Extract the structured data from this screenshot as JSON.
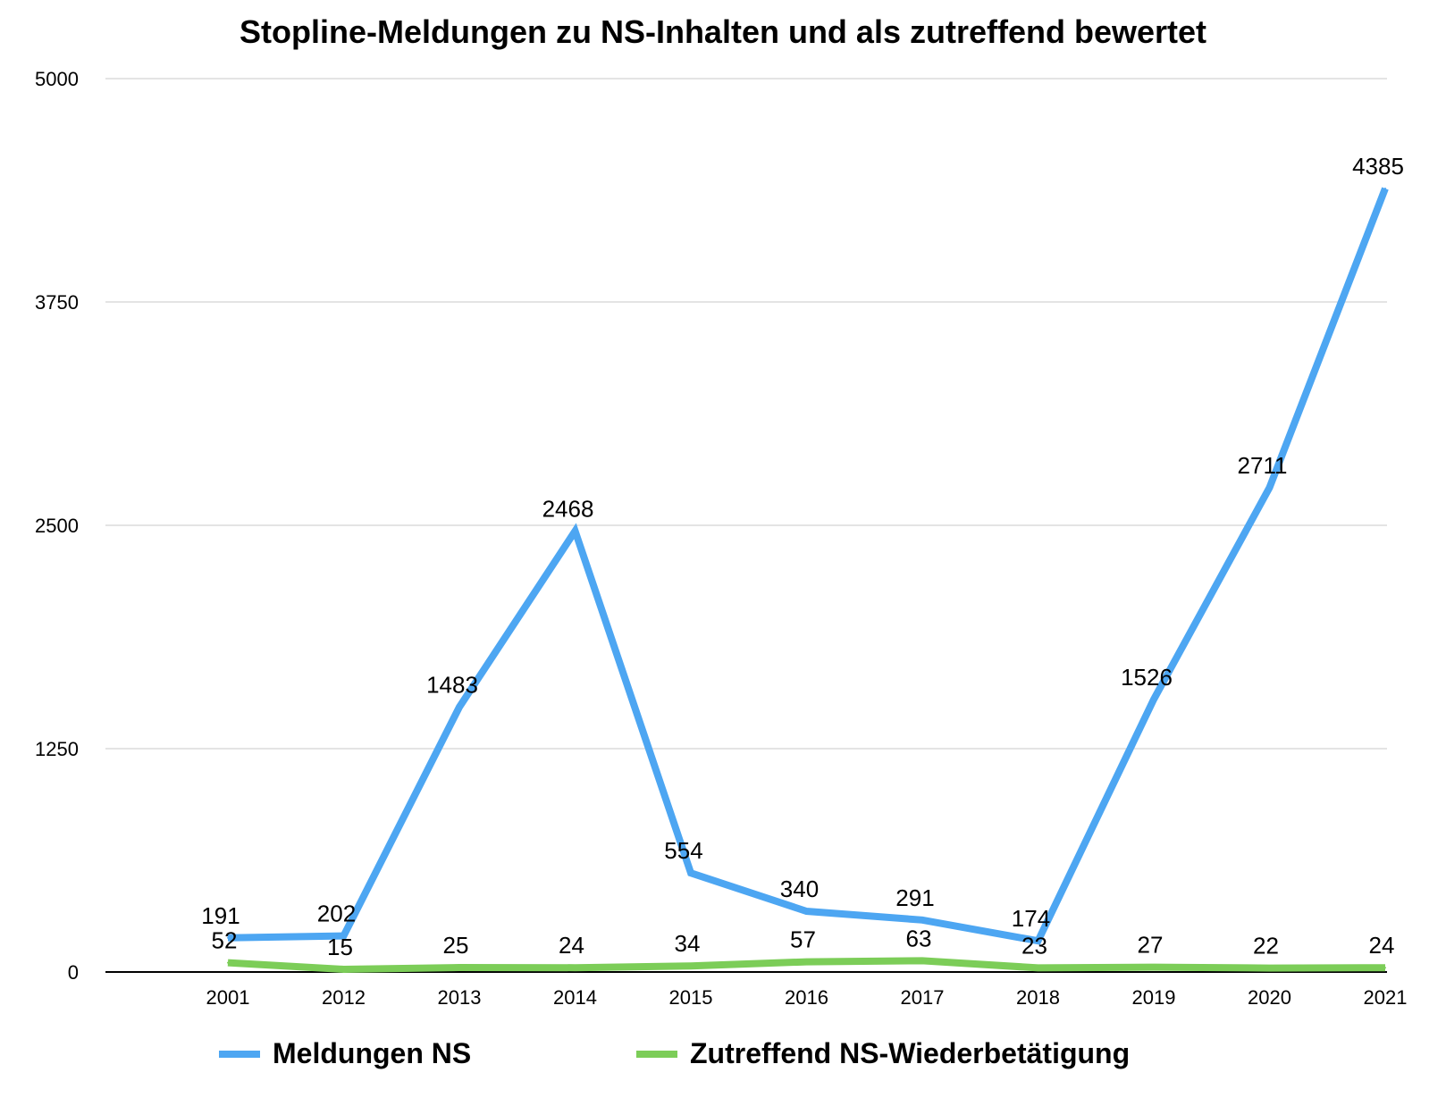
{
  "chart_data": {
    "type": "line",
    "title": "Stopline-Meldungen zu NS-Inhalten und als zutreffend bewertet",
    "xlabel": "",
    "ylabel": "",
    "categories": [
      "2001",
      "2012",
      "2013",
      "2014",
      "2015",
      "2016",
      "2017",
      "2018",
      "2019",
      "2020",
      "2021"
    ],
    "series": [
      {
        "name": "Meldungen NS",
        "color": "#4da6f2",
        "values": [
          191,
          202,
          1483,
          2468,
          554,
          340,
          291,
          174,
          1526,
          2711,
          4385
        ]
      },
      {
        "name": "Zutreffend NS-Wiederbetätigung",
        "color": "#7ccd58",
        "values": [
          52,
          15,
          25,
          24,
          34,
          57,
          63,
          23,
          27,
          22,
          24
        ]
      }
    ],
    "ylim": [
      0,
      5000
    ],
    "yticks": [
      0,
      1250,
      2500,
      3750,
      5000
    ],
    "grid": true,
    "legend_position": "bottom"
  }
}
